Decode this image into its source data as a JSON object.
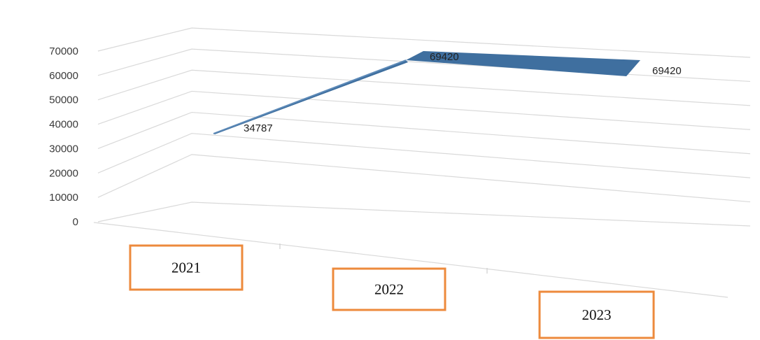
{
  "chart_data": {
    "type": "line",
    "style": "3d-ribbon",
    "title": "",
    "xlabel": "",
    "ylabel": "",
    "categories": [
      "2021",
      "2022",
      "2023"
    ],
    "series": [
      {
        "values": [
          34787,
          69420,
          69420
        ],
        "color": "#3f6f9f"
      }
    ],
    "data_labels": [
      "34787",
      "69420",
      "69420"
    ],
    "y_ticks": [
      "0",
      "10000",
      "20000",
      "30000",
      "40000",
      "50000",
      "60000",
      "70000"
    ],
    "ylim": [
      0,
      70000
    ],
    "grid": true,
    "legend": "none",
    "category_box_color": "#ed8a3c"
  }
}
